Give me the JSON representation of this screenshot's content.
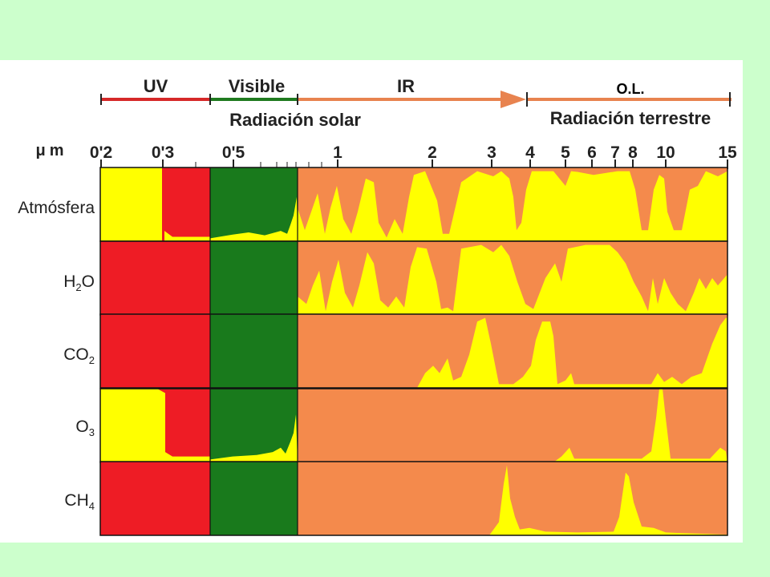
{
  "header": {
    "bands": [
      {
        "label": "UV",
        "color": "#d62828"
      },
      {
        "label": "Visible",
        "color": "#1f7a1f"
      },
      {
        "label": "IR",
        "color": "#e8834f"
      }
    ],
    "ol_label": "O.L.",
    "solar_label": "Radiación solar",
    "terrestrial_label": "Radiación terrestre"
  },
  "axis": {
    "unit_prefix": "μ",
    "unit_suffix": "m",
    "ticks": [
      {
        "label": "0'2",
        "value": 0.2
      },
      {
        "label": "0'3",
        "value": 0.3
      },
      {
        "label": "0'5",
        "value": 0.5
      },
      {
        "label": "1",
        "value": 1
      },
      {
        "label": "2",
        "value": 2
      },
      {
        "label": "3",
        "value": 3
      },
      {
        "label": "4",
        "value": 4
      },
      {
        "label": "5",
        "value": 5
      },
      {
        "label": "6",
        "value": 6
      },
      {
        "label": "7",
        "value": 7
      },
      {
        "label": "8",
        "value": 8
      },
      {
        "label": "10",
        "value": 10
      },
      {
        "label": "15",
        "value": 15
      }
    ]
  },
  "rows": [
    {
      "label": "Atmósfera",
      "base": "Atmósfera",
      "sub": "",
      "post": ""
    },
    {
      "label": "H2O",
      "base": "H",
      "sub": "2",
      "post": "O"
    },
    {
      "label": "CO2",
      "base": "CO",
      "sub": "2",
      "post": ""
    },
    {
      "label": "O3",
      "base": "O",
      "sub": "3",
      "post": ""
    },
    {
      "label": "CH4",
      "base": "CH",
      "sub": "4",
      "post": ""
    }
  ],
  "colors": {
    "uv": "#ee1c25",
    "visible": "#197a1c",
    "ir": "#f48a4c",
    "transmission": "#ffff00",
    "background": "#ccffcc"
  }
}
